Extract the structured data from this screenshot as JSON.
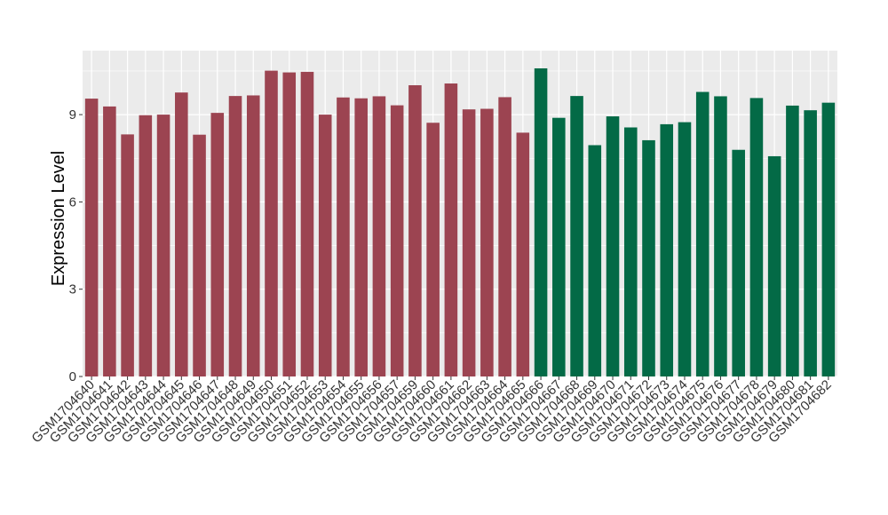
{
  "chart_data": {
    "type": "bar",
    "ylabel": "Expression Level",
    "xlabel": "",
    "ylim": [
      0,
      11.2
    ],
    "yticks": [
      0,
      3,
      6,
      9
    ],
    "grid": true,
    "legend": "none",
    "colors": {
      "group1": "#9c4451",
      "group2": "#036a46",
      "panel": "#ebebeb",
      "grid": "#ffffff"
    },
    "categories": [
      "GSM1704640",
      "GSM1704641",
      "GSM1704642",
      "GSM1704643",
      "GSM1704644",
      "GSM1704645",
      "GSM1704646",
      "GSM1704647",
      "GSM1704648",
      "GSM1704649",
      "GSM1704650",
      "GSM1704651",
      "GSM1704652",
      "GSM1704653",
      "GSM1704654",
      "GSM1704655",
      "GSM1704656",
      "GSM1704657",
      "GSM1704659",
      "GSM1704660",
      "GSM1704661",
      "GSM1704662",
      "GSM1704663",
      "GSM1704664",
      "GSM1704665",
      "GSM1704666",
      "GSM1704667",
      "GSM1704668",
      "GSM1704669",
      "GSM1704670",
      "GSM1704671",
      "GSM1704672",
      "GSM1704673",
      "GSM1704674",
      "GSM1704675",
      "GSM1704676",
      "GSM1704677",
      "GSM1704678",
      "GSM1704679",
      "GSM1704680",
      "GSM1704681",
      "GSM1704682"
    ],
    "values": [
      9.55,
      9.28,
      8.32,
      8.98,
      9.0,
      9.76,
      8.31,
      9.06,
      9.64,
      9.66,
      10.51,
      10.45,
      10.47,
      9.0,
      9.59,
      9.56,
      9.63,
      9.32,
      10.01,
      8.72,
      10.07,
      9.18,
      9.2,
      9.6,
      8.38,
      10.59,
      8.89,
      9.64,
      7.95,
      8.94,
      8.56,
      8.12,
      8.67,
      8.74,
      9.78,
      9.63,
      7.79,
      9.57,
      7.57,
      9.31,
      9.15,
      9.41
    ],
    "groups": [
      1,
      1,
      1,
      1,
      1,
      1,
      1,
      1,
      1,
      1,
      1,
      1,
      1,
      1,
      1,
      1,
      1,
      1,
      1,
      1,
      1,
      1,
      1,
      1,
      1,
      2,
      2,
      2,
      2,
      2,
      2,
      2,
      2,
      2,
      2,
      2,
      2,
      2,
      2,
      2,
      2,
      2
    ]
  }
}
